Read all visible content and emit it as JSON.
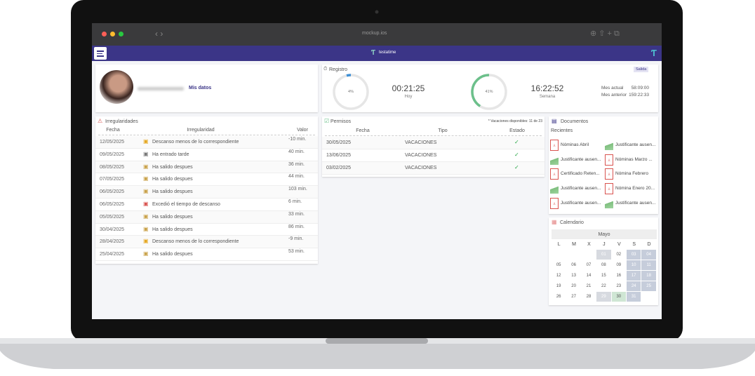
{
  "browser": {
    "url": "mockup.ios"
  },
  "app": {
    "brand": "testatime"
  },
  "profile": {
    "link": "Mis datos"
  },
  "registro": {
    "title": "Registro",
    "button": "Salida",
    "gauges": [
      {
        "value": 4,
        "label": "4%",
        "time": "00:21:25",
        "period": "Hoy",
        "color": "#3d8fd6"
      },
      {
        "value": 41,
        "label": "41%",
        "time": "16:22:52",
        "period": "Semana",
        "color": "#6cc08b"
      }
    ],
    "summary": [
      {
        "label": "Mes actual",
        "value": "58:09:00"
      },
      {
        "label": "Mes anterior",
        "value": "159:22:33"
      }
    ]
  },
  "irregularidades": {
    "title": "Irregularidades",
    "headers": [
      "Fecha",
      "Irregularidad",
      "Valor"
    ],
    "rows": [
      {
        "date": "12/05/2025",
        "text": "Descanso menos de lo correspondiente",
        "value": "-10 min.",
        "color": "#e5a823"
      },
      {
        "date": "09/05/2025",
        "text": "Ha entrado tarde",
        "value": "40 min.",
        "color": "#777"
      },
      {
        "date": "08/05/2025",
        "text": "Ha salido despues",
        "value": "36 min.",
        "color": "#c9a24a"
      },
      {
        "date": "07/05/2025",
        "text": "Ha salido despues",
        "value": "44 min.",
        "color": "#c9a24a"
      },
      {
        "date": "06/05/2025",
        "text": "Ha salido despues",
        "value": "103 min.",
        "color": "#c9a24a"
      },
      {
        "date": "06/05/2025",
        "text": "Excedió el tiempo de descanso",
        "value": "6 min.",
        "color": "#d9534f"
      },
      {
        "date": "05/05/2025",
        "text": "Ha salido despues",
        "value": "33 min.",
        "color": "#c9a24a"
      },
      {
        "date": "30/04/2025",
        "text": "Ha salido despues",
        "value": "86 min.",
        "color": "#c9a24a"
      },
      {
        "date": "28/04/2025",
        "text": "Descanso menos de lo correspondiente",
        "value": "-9 min.",
        "color": "#e5a823"
      },
      {
        "date": "25/04/2025",
        "text": "Ha salido despues",
        "value": "53 min.",
        "color": "#c9a24a"
      }
    ]
  },
  "permisos": {
    "title": "Permisos",
    "note": "* Vacaciones disponibles: 11 de 23",
    "headers": [
      "Fecha",
      "Tipo",
      "Estado"
    ],
    "rows": [
      {
        "date": "30/05/2025",
        "type": "VACACIONES"
      },
      {
        "date": "13/06/2025",
        "type": "VACACIONES"
      },
      {
        "date": "03/02/2025",
        "type": "VACACIONES"
      }
    ]
  },
  "documentos": {
    "title": "Documentos",
    "subtitle": "Recientes",
    "items": [
      {
        "name": "Nóminas Abril",
        "kind": "pdf"
      },
      {
        "name": "Justificante ausen...",
        "kind": "image"
      },
      {
        "name": "Justificante ausen...",
        "kind": "image"
      },
      {
        "name": "Nóminas Marzo ...",
        "kind": "pdf"
      },
      {
        "name": "Certificado Reten...",
        "kind": "pdf"
      },
      {
        "name": "Nómina Febrero",
        "kind": "pdf"
      },
      {
        "name": "Justificante ausen...",
        "kind": "image"
      },
      {
        "name": "Nómina Enero 20...",
        "kind": "pdf"
      },
      {
        "name": "Justificante ausen...",
        "kind": "pdf"
      },
      {
        "name": "Justificante ausen...",
        "kind": "image"
      }
    ]
  },
  "calendario": {
    "title": "Calendario",
    "month": "Mayo",
    "weekdays": [
      "L",
      "M",
      "X",
      "J",
      "V",
      "S",
      "D"
    ],
    "weeks": [
      [
        null,
        null,
        null,
        "01",
        "02",
        "03",
        "04"
      ],
      [
        "05",
        "06",
        "07",
        "08",
        "09",
        "10",
        "11"
      ],
      [
        "12",
        "13",
        "14",
        "15",
        "16",
        "17",
        "18"
      ],
      [
        "19",
        "20",
        "21",
        "22",
        "23",
        "24",
        "25"
      ],
      [
        "26",
        "27",
        "28",
        "29",
        "30",
        "31",
        null
      ]
    ]
  }
}
